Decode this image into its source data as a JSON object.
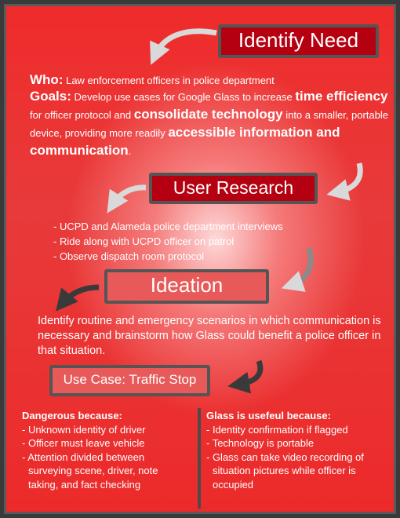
{
  "stages": {
    "identify": "Identify Need",
    "research": "User Research",
    "ideation": "Ideation",
    "use_case": "Use Case: Traffic Stop"
  },
  "who": {
    "label": "Who:",
    "text": " Law enforcement officers in police department"
  },
  "goals": {
    "label": "Goals:",
    "t1": " Develop use cases for Google Glass to increase ",
    "b1": "time efficiency",
    "t2": " for officer protocol and ",
    "b2": "consolidate technology",
    "t3": " into a smaller, portable device, providing more readily ",
    "b3": "accessible information and communication",
    "t4": "."
  },
  "research_items": [
    "- UCPD and Alameda police department interviews",
    "- Ride along with UCPD officer on patrol",
    "- Observe dispatch room protocol"
  ],
  "ideation_text": "Identify routine and emergency scenarios in which communication is necessary and brainstorm how Glass could benefit a police officer in that situation.",
  "dangerous": {
    "heading": "Dangerous because:",
    "items": [
      "- Unknown identity of driver",
      "- Officer must leave vehicle",
      "- Attention divided between surveying scene, driver, note taking, and fact checking"
    ]
  },
  "useful": {
    "heading": "Glass is usefeul because:",
    "items": [
      "- Identity confirmation if flagged",
      "- Technology is portable",
      "- Glass can take video recording of situation pictures while officer is occupied"
    ]
  },
  "colors": {
    "background_red": "#ec2a2a",
    "stage_dark": "#b40010",
    "stage_light": "#e85a5a",
    "border_gray": "#555555",
    "arrow_light": "#d9d9d9",
    "arrow_dark": "#3a3a3a"
  }
}
